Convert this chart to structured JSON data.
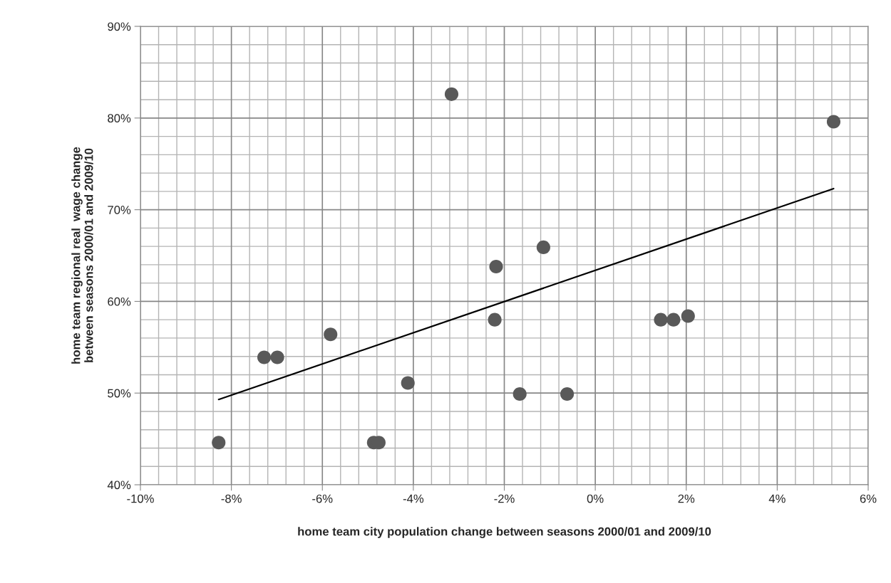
{
  "chart_data": {
    "type": "scatter",
    "xlabel": "home team city population change between seasons 2000/01 and 2009/10",
    "ylabel": "home team regional real  wage change\nbetween seasons 2000/01 and 2009/10",
    "series": [
      {
        "color": "#595959",
        "marker": "circle",
        "x": [
          -8.28,
          -7.28,
          -6.99,
          -5.82,
          -4.12,
          -4.87,
          -4.76,
          -3.16,
          -2.18,
          -2.21,
          -1.14,
          -1.66,
          -0.62,
          1.44,
          1.72,
          2.04,
          5.24
        ],
        "values": [
          44.6,
          53.9,
          53.9,
          56.4,
          51.1,
          44.6,
          44.6,
          82.6,
          63.8,
          58.0,
          65.9,
          49.9,
          49.9,
          58.0,
          58.0,
          58.4,
          79.6
        ]
      },
      {
        "type": "line",
        "color": "#000000",
        "line_style": "solid",
        "marker": "none",
        "x": [
          -8.28,
          5.24
        ],
        "values": [
          49.3,
          72.3
        ]
      }
    ],
    "xlim": [
      -10,
      6
    ],
    "ylim": [
      40,
      90
    ],
    "xticks": [
      {
        "value": -10,
        "label": "-10%"
      },
      {
        "value": -8,
        "label": "-8%"
      },
      {
        "value": -6,
        "label": "-6%"
      },
      {
        "value": -4,
        "label": "-4%"
      },
      {
        "value": -2,
        "label": "-2%"
      },
      {
        "value": 0,
        "label": "0%"
      },
      {
        "value": 2,
        "label": "2%"
      },
      {
        "value": 4,
        "label": "4%"
      },
      {
        "value": 6,
        "label": "6%"
      }
    ],
    "yticks": [
      {
        "value": 40,
        "label": "40%"
      },
      {
        "value": 50,
        "label": "50%"
      },
      {
        "value": 60,
        "label": "60%"
      },
      {
        "value": 70,
        "label": "70%"
      },
      {
        "value": 80,
        "label": "80%"
      },
      {
        "value": 90,
        "label": "90%"
      }
    ],
    "grid": true,
    "legend": false
  }
}
